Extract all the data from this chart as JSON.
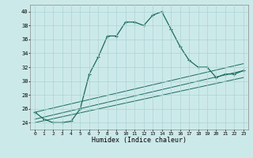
{
  "xlabel": "Humidex (Indice chaleur)",
  "xlim": [
    -0.5,
    23.5
  ],
  "ylim": [
    23,
    41
  ],
  "yticks": [
    24,
    26,
    28,
    30,
    32,
    34,
    36,
    38,
    40
  ],
  "xticks": [
    0,
    1,
    2,
    3,
    4,
    5,
    6,
    7,
    8,
    9,
    10,
    11,
    12,
    13,
    14,
    15,
    16,
    17,
    18,
    19,
    20,
    21,
    22,
    23
  ],
  "bg_color": "#cce9e9",
  "line_color": "#1a6b5a",
  "grid_color": "#aad4d4",
  "series1": {
    "x": [
      0,
      1,
      2,
      3,
      4,
      5,
      6,
      7,
      8,
      9,
      10,
      11,
      12,
      13,
      14,
      15,
      16,
      17,
      18,
      19,
      20,
      21,
      22,
      23
    ],
    "y": [
      25.5,
      24.5,
      24.0,
      24.0,
      24.2,
      26.0,
      31.0,
      33.5,
      36.5,
      36.5,
      38.5,
      38.5,
      38.0,
      39.5,
      40.0,
      37.5,
      35.0,
      33.0,
      32.0,
      32.0,
      30.5,
      31.0,
      31.0,
      31.5
    ]
  },
  "series2": {
    "x": [
      0,
      23
    ],
    "y": [
      24.0,
      30.5
    ]
  },
  "series3": {
    "x": [
      0,
      23
    ],
    "y": [
      24.5,
      31.5
    ]
  },
  "series4": {
    "x": [
      0,
      23
    ],
    "y": [
      25.5,
      32.5
    ]
  }
}
